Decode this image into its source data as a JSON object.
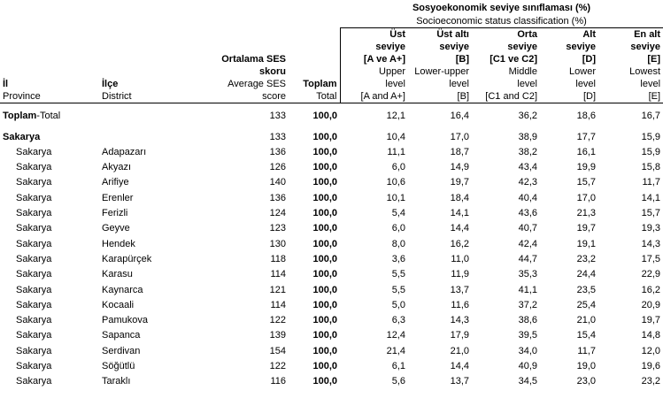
{
  "header": {
    "group_tr": "Sosyoekonomik seviye sınıflaması (%)",
    "group_en": "Socioeconomic status classification (%)",
    "il_tr": "İl",
    "il_en": "Province",
    "ilce_tr": "İlçe",
    "ilce_en": "District",
    "ses_tr_1": "Ortalama SES",
    "ses_tr_2": "skoru",
    "ses_en_1": "Average SES",
    "ses_en_2": "score",
    "toplam_tr": "Toplam",
    "toplam_en": "Total",
    "cols": [
      {
        "tr1": "Üst",
        "tr2": "seviye",
        "tr3": "[A ve A+]",
        "en1": "Upper",
        "en2": "level",
        "en3": "[A and A+]"
      },
      {
        "tr1": "Üst altı",
        "tr2": "seviye",
        "tr3": "[B]",
        "en1": "Lower-upper",
        "en2": "level",
        "en3": "[B]"
      },
      {
        "tr1": "Orta",
        "tr2": "seviye",
        "tr3": "[C1 ve C2]",
        "en1": "Middle",
        "en2": "level",
        "en3": "[C1 and C2]"
      },
      {
        "tr1": "Alt",
        "tr2": "seviye",
        "tr3": "[D]",
        "en1": "Lower",
        "en2": "level",
        "en3": "[D]"
      },
      {
        "tr1": "En alt",
        "tr2": "seviye",
        "tr3": "[E]",
        "en1": "Lowest",
        "en2": "level",
        "en3": "[E]"
      }
    ]
  },
  "total_row": {
    "label_bold": "Toplam",
    "label_rest": "-Total",
    "ses": "133",
    "total": "100,0",
    "vals": [
      "12,1",
      "16,4",
      "36,2",
      "18,6",
      "16,7"
    ]
  },
  "province_row": {
    "province": "Sakarya",
    "ses": "133",
    "total": "100,0",
    "vals": [
      "10,4",
      "17,0",
      "38,9",
      "17,7",
      "15,9"
    ]
  },
  "rows": [
    {
      "province": "Sakarya",
      "district": "Adapazarı",
      "ses": "136",
      "total": "100,0",
      "vals": [
        "11,1",
        "18,7",
        "38,2",
        "16,1",
        "15,9"
      ]
    },
    {
      "province": "Sakarya",
      "district": "Akyazı",
      "ses": "126",
      "total": "100,0",
      "vals": [
        "6,0",
        "14,9",
        "43,4",
        "19,9",
        "15,8"
      ]
    },
    {
      "province": "Sakarya",
      "district": "Arifiye",
      "ses": "140",
      "total": "100,0",
      "vals": [
        "10,6",
        "19,7",
        "42,3",
        "15,7",
        "11,7"
      ]
    },
    {
      "province": "Sakarya",
      "district": "Erenler",
      "ses": "136",
      "total": "100,0",
      "vals": [
        "10,1",
        "18,4",
        "40,4",
        "17,0",
        "14,1"
      ]
    },
    {
      "province": "Sakarya",
      "district": "Ferizli",
      "ses": "124",
      "total": "100,0",
      "vals": [
        "5,4",
        "14,1",
        "43,6",
        "21,3",
        "15,7"
      ]
    },
    {
      "province": "Sakarya",
      "district": "Geyve",
      "ses": "123",
      "total": "100,0",
      "vals": [
        "6,0",
        "14,4",
        "40,7",
        "19,7",
        "19,3"
      ]
    },
    {
      "province": "Sakarya",
      "district": "Hendek",
      "ses": "130",
      "total": "100,0",
      "vals": [
        "8,0",
        "16,2",
        "42,4",
        "19,1",
        "14,3"
      ]
    },
    {
      "province": "Sakarya",
      "district": "Karapürçek",
      "ses": "118",
      "total": "100,0",
      "vals": [
        "3,6",
        "11,0",
        "44,7",
        "23,2",
        "17,5"
      ]
    },
    {
      "province": "Sakarya",
      "district": "Karasu",
      "ses": "114",
      "total": "100,0",
      "vals": [
        "5,5",
        "11,9",
        "35,3",
        "24,4",
        "22,9"
      ]
    },
    {
      "province": "Sakarya",
      "district": "Kaynarca",
      "ses": "121",
      "total": "100,0",
      "vals": [
        "5,5",
        "13,7",
        "41,1",
        "23,5",
        "16,2"
      ]
    },
    {
      "province": "Sakarya",
      "district": "Kocaali",
      "ses": "114",
      "total": "100,0",
      "vals": [
        "5,0",
        "11,6",
        "37,2",
        "25,4",
        "20,9"
      ]
    },
    {
      "province": "Sakarya",
      "district": "Pamukova",
      "ses": "122",
      "total": "100,0",
      "vals": [
        "6,3",
        "14,3",
        "38,6",
        "21,0",
        "19,7"
      ]
    },
    {
      "province": "Sakarya",
      "district": "Sapanca",
      "ses": "139",
      "total": "100,0",
      "vals": [
        "12,4",
        "17,9",
        "39,5",
        "15,4",
        "14,8"
      ]
    },
    {
      "province": "Sakarya",
      "district": "Serdivan",
      "ses": "154",
      "total": "100,0",
      "vals": [
        "21,4",
        "21,0",
        "34,0",
        "11,7",
        "12,0"
      ]
    },
    {
      "province": "Sakarya",
      "district": "Söğütlü",
      "ses": "122",
      "total": "100,0",
      "vals": [
        "6,1",
        "14,4",
        "40,9",
        "19,0",
        "19,6"
      ]
    },
    {
      "province": "Sakarya",
      "district": "Taraklı",
      "ses": "116",
      "total": "100,0",
      "vals": [
        "5,6",
        "13,7",
        "34,5",
        "23,0",
        "23,2"
      ]
    }
  ]
}
